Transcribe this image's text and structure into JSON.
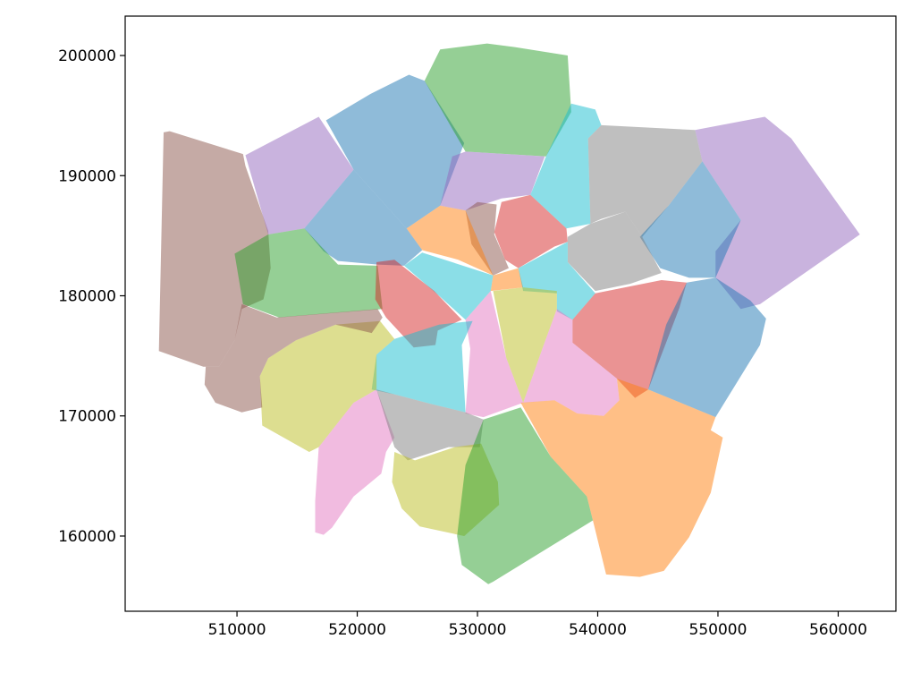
{
  "chart_data": {
    "type": "polygon",
    "alpha": 0.5,
    "xlim": [
      500700,
      564800
    ],
    "ylim": [
      153740,
      203280
    ],
    "xticks": [
      510000,
      520000,
      530000,
      540000,
      550000,
      560000
    ],
    "yticks": [
      160000,
      170000,
      180000,
      190000,
      200000
    ],
    "polygons": [
      {
        "color": "#8c564b",
        "x": [
          503900,
          504400,
          510500,
          510700,
          512600,
          512800,
          512200,
          510400,
          509800,
          508500,
          507200,
          503500
        ],
        "y": [
          193600,
          193700,
          191800,
          190800,
          185400,
          182300,
          179700,
          178900,
          176300,
          174100,
          174100,
          175400
        ]
      },
      {
        "color": "#9467bd",
        "x": [
          510700,
          516800,
          519700,
          515600,
          512600
        ],
        "y": [
          191700,
          194900,
          190500,
          185600,
          185100
        ]
      },
      {
        "color": "#1f77b4",
        "x": [
          517400,
          521100,
          524300,
          525600,
          528900,
          526900,
          524100,
          519700
        ],
        "y": [
          194600,
          196800,
          198400,
          197900,
          192700,
          187500,
          185600,
          190500
        ]
      },
      {
        "color": "#2ca02c",
        "x": [
          526900,
          530800,
          533100,
          537500,
          537800,
          535700,
          529000,
          525600
        ],
        "y": [
          200500,
          201000,
          200700,
          200000,
          195300,
          191600,
          192000,
          197900
        ]
      },
      {
        "color": "#17becf",
        "x": [
          535700,
          537800,
          539800,
          540300,
          539200,
          539400,
          537400,
          534400
        ],
        "y": [
          191600,
          196000,
          195500,
          194200,
          193100,
          186000,
          185600,
          188400
        ]
      },
      {
        "color": "#9467bd",
        "x": [
          526900,
          527900,
          529000,
          535600,
          534400,
          532000,
          530500,
          529000
        ],
        "y": [
          187500,
          191600,
          192000,
          191600,
          188400,
          188100,
          187600,
          187100
        ]
      },
      {
        "color": "#7f7f7f",
        "x": [
          539200,
          540300,
          548100,
          548700,
          545900,
          543700,
          542300,
          540300,
          539400
        ],
        "y": [
          193100,
          194200,
          193800,
          191200,
          187500,
          184900,
          187000,
          186400,
          186000
        ]
      },
      {
        "color": "#9467bd",
        "x": [
          548100,
          553900,
          556100,
          559800,
          561800,
          553500,
          551900,
          549800,
          549800,
          551900,
          548700
        ],
        "y": [
          193800,
          194900,
          193100,
          187900,
          185100,
          179300,
          178900,
          181500,
          183700,
          186300,
          191200
        ]
      },
      {
        "color": "#1f77b4",
        "x": [
          548700,
          551900,
          549800,
          547600,
          545200,
          543500,
          545900
        ],
        "y": [
          191200,
          186300,
          181500,
          181500,
          182300,
          184900,
          187500
        ]
      },
      {
        "color": "#7f7f7f",
        "x": [
          537500,
          539400,
          542300,
          543700,
          545300,
          542700,
          539800,
          537500
        ],
        "y": [
          184900,
          186000,
          187000,
          184900,
          181900,
          181000,
          180400,
          182800
        ]
      },
      {
        "color": "#d62728",
        "x": [
          532000,
          534400,
          537400,
          537500,
          536400,
          533400,
          532300,
          531400
        ],
        "y": [
          187800,
          188400,
          185600,
          184500,
          184100,
          182300,
          183000,
          185300
        ]
      },
      {
        "color": "#8c564b",
        "x": [
          529000,
          530000,
          531600,
          531400,
          532600,
          531300,
          529500
        ],
        "y": [
          187100,
          187800,
          187600,
          185100,
          182300,
          181700,
          184300
        ]
      },
      {
        "color": "#ff7f0e",
        "x": [
          524100,
          526900,
          529000,
          531300,
          528400,
          525400
        ],
        "y": [
          185600,
          187500,
          187100,
          181700,
          183000,
          183800
        ]
      },
      {
        "color": "#ff7f0e",
        "x": [
          531300,
          533400,
          533800,
          531100
        ],
        "y": [
          181700,
          182300,
          180700,
          180400
        ]
      },
      {
        "color": "#1f77b4",
        "x": [
          515600,
          519700,
          524100,
          525400,
          523900,
          521700,
          518400,
          517200
        ],
        "y": [
          185600,
          190500,
          185600,
          183800,
          182500,
          182600,
          182900,
          183700
        ]
      },
      {
        "color": "#2ca02c",
        "x": [
          509800,
          512600,
          515600,
          518400,
          521700,
          522100,
          513500,
          510500
        ],
        "y": [
          183500,
          185100,
          185600,
          182600,
          182500,
          178900,
          178200,
          179300
        ]
      },
      {
        "color": "#17becf",
        "x": [
          523900,
          525400,
          531300,
          531100,
          529000,
          526800
        ],
        "y": [
          182500,
          183600,
          181700,
          180400,
          178000,
          180000
        ]
      },
      {
        "color": "#d62728",
        "x": [
          521600,
          523100,
          526400,
          528700,
          526700,
          526500,
          524700,
          522400,
          521500
        ],
        "y": [
          182800,
          183000,
          180400,
          178000,
          177100,
          175900,
          175700,
          178200,
          179700
        ]
      },
      {
        "color": "#17becf",
        "x": [
          533400,
          537500,
          537500,
          539800,
          537900,
          536600,
          536600,
          533800
        ],
        "y": [
          182300,
          184500,
          182800,
          180200,
          178000,
          178700,
          180200,
          180400
        ]
      },
      {
        "color": "#d62728",
        "x": [
          537900,
          539800,
          545300,
          547400,
          546800,
          544200,
          543100,
          541600,
          537900
        ],
        "y": [
          178000,
          180200,
          181300,
          181100,
          179000,
          172200,
          171500,
          173100,
          176100
        ]
      },
      {
        "color": "#1f77b4",
        "x": [
          547400,
          549800,
          552700,
          554000,
          553500,
          549800,
          544200,
          545700
        ],
        "y": [
          181100,
          181500,
          179600,
          178100,
          175900,
          169900,
          172200,
          177600
        ]
      },
      {
        "color": "#bcbd22",
        "x": [
          531300,
          533800,
          536600,
          536600,
          535400,
          533800,
          532400
        ],
        "y": [
          180400,
          180700,
          180400,
          178900,
          175600,
          171100,
          174800
        ]
      },
      {
        "color": "#e377c2",
        "x": [
          533800,
          535400,
          536600,
          537900,
          537900,
          541600,
          541800,
          540500,
          538300,
          536400
        ],
        "y": [
          171100,
          175600,
          178900,
          178000,
          176100,
          173100,
          171300,
          170000,
          170200,
          171300
        ]
      },
      {
        "color": "#e377c2",
        "x": [
          531100,
          532400,
          533800,
          530500,
          529000,
          529400,
          529000
        ],
        "y": [
          180400,
          174800,
          171100,
          169900,
          170200,
          175600,
          178000
        ]
      },
      {
        "color": "#17becf",
        "x": [
          521200,
          521600,
          523100,
          526800,
          529600,
          528700,
          529000,
          526100,
          523100
        ],
        "y": [
          172200,
          175100,
          176400,
          177600,
          177900,
          175900,
          170300,
          171000,
          171800
        ]
      },
      {
        "color": "#bcbd22",
        "x": [
          511900,
          512600,
          514900,
          518200,
          521900,
          523100,
          521600,
          521600,
          519700,
          516800,
          516000,
          512100
        ],
        "y": [
          173300,
          174800,
          176300,
          177600,
          177900,
          176400,
          175100,
          172200,
          171100,
          167400,
          167000,
          169200
        ]
      },
      {
        "color": "#8c564b",
        "x": [
          510400,
          513300,
          521700,
          522100,
          521200,
          518200,
          514900,
          512600,
          511900,
          512100,
          510400,
          508200,
          507300,
          507400,
          508500,
          509800
        ],
        "y": [
          179300,
          178200,
          178900,
          178200,
          176900,
          177600,
          176300,
          174800,
          173300,
          170700,
          170300,
          171100,
          172600,
          174100,
          174100,
          176300
        ]
      },
      {
        "color": "#e377c2",
        "x": [
          516800,
          519700,
          521600,
          523100,
          522400,
          522000,
          519700,
          517900,
          517200,
          516500,
          516500
        ],
        "y": [
          167400,
          171100,
          172200,
          168200,
          167000,
          165200,
          163300,
          160700,
          160100,
          160300,
          162900
        ]
      },
      {
        "color": "#7f7f7f",
        "x": [
          521600,
          523100,
          526100,
          529000,
          530500,
          530200,
          527600,
          524200,
          523100
        ],
        "y": [
          172200,
          171800,
          171000,
          170300,
          169700,
          167400,
          167400,
          166300,
          167400
        ]
      },
      {
        "color": "#bcbd22",
        "x": [
          523100,
          524800,
          528100,
          530300,
          531700,
          531800,
          528900,
          525200,
          523700,
          522900
        ],
        "y": [
          167000,
          166300,
          167400,
          167700,
          164500,
          162600,
          160000,
          160800,
          162300,
          164500
        ]
      },
      {
        "color": "#2ca02c",
        "x": [
          530500,
          533600,
          536100,
          539100,
          539600,
          531300,
          530900,
          528700,
          528300,
          529000
        ],
        "y": [
          169700,
          170700,
          166600,
          163300,
          161300,
          156200,
          156000,
          157600,
          160000,
          165900
        ]
      },
      {
        "color": "#ff7f0e",
        "x": [
          533600,
          536400,
          538300,
          540500,
          541800,
          541600,
          544200,
          549800,
          549400,
          550400,
          549400,
          547600,
          545500,
          543500,
          540700,
          539600,
          539100,
          536100
        ],
        "y": [
          171100,
          171300,
          170200,
          170000,
          171300,
          173100,
          172200,
          169900,
          168800,
          168200,
          163600,
          159900,
          157100,
          156600,
          156800,
          161300,
          163300,
          166600
        ]
      }
    ]
  }
}
